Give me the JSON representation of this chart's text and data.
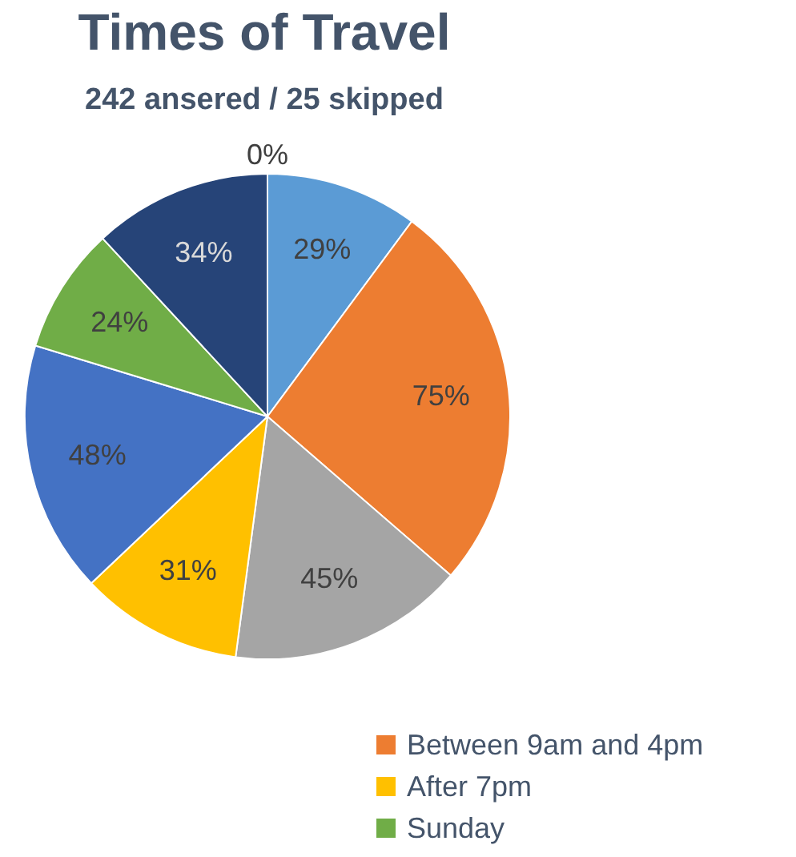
{
  "chart_data": {
    "type": "pie",
    "title": "Times of Travel",
    "subtitle": "242 ansered / 25 skipped",
    "categories": [
      null,
      null,
      "Between 9am and 4pm",
      null,
      "After 7pm",
      null,
      "Sunday",
      null
    ],
    "values": [
      0,
      29,
      75,
      45,
      31,
      48,
      24,
      34
    ],
    "value_labels": [
      "0%",
      "29%",
      "75%",
      "45%",
      "31%",
      "48%",
      "24%",
      "34%"
    ],
    "colors": [
      "#2f5597",
      "#5b9bd5",
      "#ed7d31",
      "#a5a5a5",
      "#ffc000",
      "#4472c4",
      "#70ad47",
      "#264478"
    ],
    "legend": "bottom right"
  }
}
